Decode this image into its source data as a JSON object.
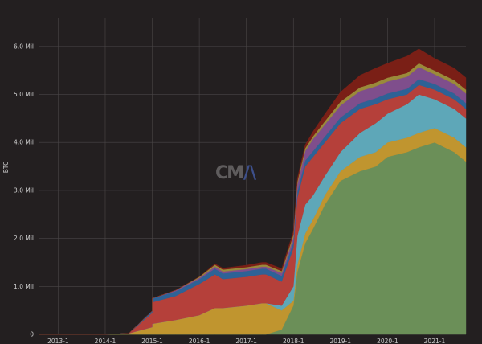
{
  "chart_data": {
    "type": "area",
    "stacked": true,
    "ylabel": "BTC",
    "ylim": [
      0,
      6.6
    ],
    "y_ticks": [
      {
        "value": 0,
        "label": "0"
      },
      {
        "value": 1,
        "label": "1.0 Mil"
      },
      {
        "value": 2,
        "label": "2.0 Mil"
      },
      {
        "value": 3,
        "label": "3.0 Mil"
      },
      {
        "value": 4,
        "label": "4.0 Mil"
      },
      {
        "value": 5,
        "label": "5.0 Mil"
      },
      {
        "value": 6,
        "label": "6.0 Mil"
      }
    ],
    "x_ticks": [
      "2013-1",
      "2014-1",
      "2015-1",
      "2016-1",
      "2017-1",
      "2018-1",
      "2019-1",
      "2020-1",
      "2021-1"
    ],
    "x_start": "2012-08",
    "x": [
      "2012-08",
      "2013-01",
      "2014-01",
      "2014-07",
      "2015-01",
      "2015-01",
      "2015-07",
      "2016-01",
      "2016-05",
      "2016-07",
      "2017-01",
      "2017-05",
      "2017-06",
      "2017-10",
      "2018-01",
      "2018-02",
      "2018-04",
      "2018-06",
      "2018-09",
      "2019-01",
      "2019-06",
      "2019-10",
      "2020-01",
      "2020-06",
      "2020-09",
      "2021-01",
      "2021-06",
      "2021-09"
    ],
    "grid": true,
    "legend": "none",
    "series": [
      {
        "color": "#6b8f58",
        "values": [
          0,
          0,
          0,
          0,
          0,
          0,
          0,
          0,
          0,
          0,
          0,
          0,
          0,
          0.1,
          0.6,
          1.3,
          1.9,
          2.2,
          2.7,
          3.2,
          3.4,
          3.5,
          3.7,
          3.8,
          3.9,
          4.0,
          3.8,
          3.6
        ]
      },
      {
        "color": "#c0952f",
        "values": [
          0,
          0,
          0,
          0.02,
          0.15,
          0.22,
          0.3,
          0.4,
          0.55,
          0.55,
          0.6,
          0.65,
          0.65,
          0.4,
          0.1,
          0.15,
          0.2,
          0.2,
          0.2,
          0.2,
          0.3,
          0.3,
          0.3,
          0.3,
          0.3,
          0.3,
          0.3,
          0.3
        ]
      },
      {
        "color": "#5ea7b8",
        "values": [
          0,
          0,
          0,
          0,
          0,
          0,
          0,
          0,
          0,
          0,
          0,
          0,
          0,
          0.1,
          0.3,
          0.6,
          0.6,
          0.5,
          0.4,
          0.4,
          0.5,
          0.6,
          0.6,
          0.7,
          0.8,
          0.6,
          0.6,
          0.6
        ]
      },
      {
        "color": "#b5403a",
        "values": [
          0,
          0,
          0,
          0,
          0.3,
          0.45,
          0.5,
          0.65,
          0.7,
          0.6,
          0.6,
          0.6,
          0.6,
          0.5,
          0.8,
          0.8,
          0.8,
          0.8,
          0.7,
          0.6,
          0.5,
          0.4,
          0.3,
          0.2,
          0.2,
          0.2,
          0.2,
          0.2
        ]
      },
      {
        "color": "#2e6296",
        "values": [
          0,
          0,
          0,
          0,
          0.04,
          0.08,
          0.1,
          0.1,
          0.12,
          0.12,
          0.12,
          0.12,
          0.12,
          0.12,
          0.12,
          0.12,
          0.12,
          0.12,
          0.12,
          0.12,
          0.12,
          0.12,
          0.12,
          0.12,
          0.12,
          0.12,
          0.12,
          0.12
        ]
      },
      {
        "color": "#7f4e8c",
        "values": [
          0,
          0,
          0,
          0,
          0,
          0,
          0.02,
          0.03,
          0.04,
          0.04,
          0.04,
          0.04,
          0.04,
          0.06,
          0.1,
          0.15,
          0.2,
          0.25,
          0.25,
          0.25,
          0.25,
          0.25,
          0.25,
          0.25,
          0.25,
          0.2,
          0.2,
          0.2
        ]
      },
      {
        "color": "#9a8a3a",
        "values": [
          0,
          0,
          0,
          0,
          0,
          0,
          0,
          0.02,
          0.04,
          0.04,
          0.04,
          0.04,
          0.04,
          0.04,
          0.06,
          0.06,
          0.06,
          0.06,
          0.07,
          0.08,
          0.08,
          0.08,
          0.08,
          0.08,
          0.08,
          0.08,
          0.08,
          0.08
        ]
      },
      {
        "color": "#7a1f16",
        "values": [
          0,
          0,
          0,
          0,
          0,
          0,
          0,
          0,
          0.02,
          0.03,
          0.04,
          0.05,
          0.05,
          0.05,
          0.07,
          0.07,
          0.07,
          0.1,
          0.15,
          0.2,
          0.25,
          0.3,
          0.3,
          0.35,
          0.3,
          0.25,
          0.25,
          0.25
        ]
      }
    ]
  },
  "watermark": {
    "text_a": "CM",
    "text_b": "/\\"
  }
}
